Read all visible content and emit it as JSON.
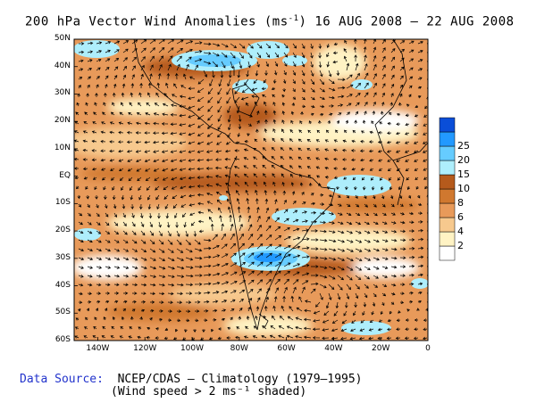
{
  "title": {
    "prefix": "200 hPa Vector Wind Anomalies (ms",
    "exp": "-1",
    "suffix": ") 16 AUG 2008 — 22 AUG 2008"
  },
  "y_labels": [
    "50N",
    "40N",
    "30N",
    "20N",
    "10N",
    "EQ",
    "10S",
    "20S",
    "30S",
    "40S",
    "50S",
    "60S"
  ],
  "x_labels": [
    "140W",
    "120W",
    "100W",
    "80W",
    "60W",
    "40W",
    "20W",
    "0"
  ],
  "colorbar": {
    "levels": [
      "2",
      "4",
      "6",
      "8",
      "10",
      "15",
      "20",
      "25"
    ],
    "colors": [
      "#ffffff",
      "#fff3c4",
      "#f7c98e",
      "#e89a5a",
      "#d0782f",
      "#b55a1c",
      "#aeeefc",
      "#66ccff",
      "#2299ff",
      "#0a4ed8"
    ]
  },
  "footer": {
    "source_label": "Data Source:",
    "source_text": "NCEP/CDAS — Climatology (1979–1995)",
    "note": "(Wind speed > 2 ms⁻¹ shaded)"
  }
}
